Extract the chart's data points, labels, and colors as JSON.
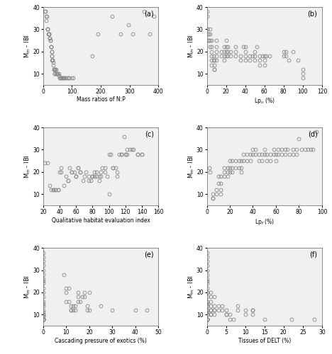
{
  "panel_a": {
    "label": "(a)",
    "xlabel": "Mass ratios of N:P",
    "ylabel": "M$_m$ - IBI",
    "xlim": [
      0,
      400
    ],
    "ylim": [
      5,
      40
    ],
    "xticks": [
      0,
      100,
      200,
      300,
      400
    ],
    "yticks": [
      10,
      20,
      30,
      40
    ],
    "x": [
      5,
      8,
      10,
      10,
      12,
      15,
      15,
      15,
      18,
      20,
      20,
      20,
      22,
      22,
      25,
      25,
      28,
      28,
      28,
      30,
      30,
      30,
      30,
      30,
      32,
      32,
      35,
      35,
      38,
      38,
      40,
      40,
      40,
      42,
      45,
      45,
      48,
      50,
      50,
      55,
      55,
      58,
      60,
      62,
      65,
      68,
      70,
      72,
      75,
      80,
      85,
      90,
      90,
      100,
      105,
      170,
      190,
      240,
      270,
      295,
      310,
      350,
      370,
      385
    ],
    "y": [
      38,
      38,
      36,
      34,
      36,
      30,
      30,
      30,
      28,
      28,
      28,
      28,
      26,
      26,
      25,
      25,
      22,
      22,
      22,
      20,
      20,
      18,
      18,
      16,
      16,
      16,
      15,
      14,
      12,
      12,
      12,
      10,
      10,
      12,
      12,
      10,
      10,
      10,
      10,
      10,
      9,
      8,
      8,
      8,
      8,
      8,
      8,
      8,
      8,
      8,
      8,
      8,
      8,
      8,
      8,
      18,
      28,
      36,
      28,
      32,
      28,
      38,
      28,
      36
    ]
  },
  "panel_b": {
    "label": "(b)",
    "xlabel": "Lp$_u$ (%)",
    "ylabel": "M$_m$ - IBI",
    "xlim": [
      0,
      120
    ],
    "ylim": [
      5,
      40
    ],
    "xticks": [
      0,
      20,
      40,
      60,
      80,
      100,
      120
    ],
    "yticks": [
      10,
      20,
      30,
      40
    ],
    "x": [
      0,
      0,
      0,
      0,
      0,
      2,
      2,
      2,
      3,
      3,
      3,
      3,
      5,
      5,
      5,
      5,
      5,
      5,
      7,
      7,
      8,
      8,
      8,
      8,
      10,
      10,
      10,
      10,
      10,
      15,
      15,
      18,
      18,
      18,
      18,
      20,
      20,
      20,
      20,
      22,
      22,
      22,
      25,
      25,
      30,
      30,
      30,
      35,
      35,
      38,
      40,
      40,
      40,
      40,
      45,
      45,
      48,
      50,
      50,
      50,
      52,
      55,
      55,
      55,
      58,
      60,
      60,
      60,
      62,
      65,
      80,
      80,
      82,
      82,
      85,
      90,
      95,
      100,
      100,
      100
    ],
    "y": [
      38,
      36,
      30,
      30,
      28,
      28,
      25,
      25,
      30,
      28,
      25,
      22,
      25,
      22,
      20,
      18,
      16,
      14,
      18,
      16,
      16,
      14,
      12,
      12,
      25,
      22,
      20,
      18,
      16,
      20,
      18,
      22,
      20,
      18,
      16,
      25,
      22,
      20,
      18,
      22,
      20,
      18,
      20,
      18,
      22,
      20,
      18,
      18,
      16,
      22,
      22,
      20,
      18,
      16,
      18,
      16,
      18,
      20,
      18,
      16,
      22,
      18,
      16,
      14,
      18,
      18,
      16,
      14,
      18,
      18,
      20,
      18,
      20,
      18,
      16,
      20,
      16,
      12,
      10,
      8
    ]
  },
  "panel_c": {
    "label": "(c)",
    "xlabel": "Qualitative habitat evaluation index",
    "ylabel": "M$_m$ - IBI",
    "xlim": [
      20,
      160
    ],
    "ylim": [
      5,
      40
    ],
    "xticks": [
      20,
      40,
      60,
      80,
      100,
      120,
      140,
      160
    ],
    "yticks": [
      10,
      20,
      30,
      40
    ],
    "x": [
      22,
      25,
      28,
      30,
      32,
      32,
      35,
      35,
      38,
      38,
      40,
      42,
      42,
      45,
      48,
      50,
      50,
      52,
      55,
      55,
      58,
      60,
      60,
      62,
      62,
      65,
      65,
      68,
      70,
      72,
      75,
      75,
      78,
      80,
      80,
      82,
      82,
      85,
      85,
      88,
      88,
      90,
      90,
      92,
      95,
      95,
      98,
      100,
      100,
      102,
      105,
      105,
      108,
      110,
      110,
      112,
      115,
      115,
      118,
      120,
      120,
      122,
      122,
      125,
      128,
      130,
      135,
      135,
      140,
      140
    ],
    "y": [
      24,
      24,
      14,
      12,
      12,
      12,
      12,
      12,
      12,
      12,
      20,
      22,
      20,
      14,
      18,
      16,
      16,
      22,
      20,
      20,
      20,
      18,
      18,
      22,
      22,
      20,
      20,
      16,
      18,
      20,
      18,
      16,
      16,
      18,
      18,
      20,
      18,
      20,
      18,
      18,
      16,
      20,
      18,
      22,
      22,
      20,
      18,
      10,
      28,
      28,
      22,
      22,
      22,
      20,
      18,
      28,
      28,
      28,
      36,
      28,
      28,
      30,
      28,
      30,
      30,
      30,
      28,
      28,
      28,
      28
    ]
  },
  "panel_d": {
    "label": "(d)",
    "xlabel": "Lp$_f$ (%)",
    "ylabel": "M$_m$ - IBI",
    "xlim": [
      0,
      100
    ],
    "ylim": [
      5,
      40
    ],
    "xticks": [
      0,
      20,
      40,
      60,
      80,
      100
    ],
    "yticks": [
      10,
      20,
      30,
      40
    ],
    "x": [
      2,
      3,
      5,
      5,
      5,
      8,
      8,
      10,
      10,
      12,
      12,
      12,
      12,
      15,
      15,
      15,
      18,
      18,
      18,
      20,
      20,
      20,
      22,
      22,
      22,
      25,
      25,
      28,
      28,
      30,
      30,
      30,
      32,
      32,
      35,
      35,
      38,
      38,
      40,
      40,
      42,
      42,
      45,
      45,
      48,
      48,
      50,
      50,
      52,
      52,
      55,
      55,
      58,
      58,
      60,
      60,
      62,
      62,
      65,
      65,
      68,
      68,
      70,
      72,
      75,
      75,
      78,
      78,
      80,
      82,
      85,
      88,
      90,
      92,
      95
    ],
    "y": [
      22,
      20,
      10,
      8,
      8,
      12,
      10,
      18,
      15,
      18,
      15,
      12,
      10,
      22,
      20,
      18,
      22,
      20,
      18,
      25,
      22,
      20,
      25,
      22,
      20,
      25,
      22,
      25,
      22,
      25,
      22,
      20,
      28,
      25,
      28,
      25,
      28,
      25,
      30,
      28,
      30,
      28,
      28,
      25,
      28,
      25,
      30,
      28,
      28,
      25,
      28,
      25,
      30,
      28,
      28,
      25,
      30,
      28,
      30,
      28,
      30,
      28,
      30,
      28,
      30,
      28,
      30,
      28,
      35,
      30,
      30,
      30,
      30,
      30,
      38
    ]
  },
  "panel_e": {
    "label": "(e)",
    "xlabel": "Cascading pressure of exotics (%)",
    "ylabel": "M$_m$ - IBI",
    "xlim": [
      0,
      50
    ],
    "ylim": [
      5,
      40
    ],
    "xticks": [
      0,
      10,
      20,
      30,
      40,
      50
    ],
    "yticks": [
      10,
      20,
      30,
      40
    ],
    "x": [
      0,
      0,
      0,
      0,
      0,
      0,
      0,
      0,
      0,
      0,
      0,
      0,
      0,
      0,
      0,
      0,
      0,
      0,
      0,
      0,
      0,
      0,
      0,
      0,
      0,
      0,
      0,
      0,
      9,
      10,
      10,
      10,
      11,
      11,
      12,
      12,
      12,
      13,
      13,
      14,
      14,
      15,
      15,
      15,
      16,
      17,
      18,
      18,
      19,
      19,
      20,
      20,
      25,
      30,
      40,
      45
    ],
    "y": [
      38,
      36,
      34,
      32,
      30,
      28,
      26,
      25,
      24,
      22,
      20,
      18,
      16,
      15,
      14,
      12,
      11,
      10,
      10,
      9,
      9,
      8,
      8,
      8,
      8,
      8,
      8,
      8,
      28,
      22,
      20,
      16,
      22,
      16,
      14,
      12,
      12,
      14,
      12,
      14,
      12,
      20,
      18,
      16,
      16,
      18,
      20,
      18,
      14,
      12,
      20,
      12,
      14,
      12,
      12,
      12
    ]
  },
  "panel_f": {
    "label": "(f)",
    "xlabel": "Tissues of DELT (%)",
    "ylabel": "M$_m$ - IBI",
    "xlim": [
      0,
      30
    ],
    "ylim": [
      5,
      40
    ],
    "xticks": [
      0,
      5,
      10,
      15,
      20,
      25,
      30
    ],
    "yticks": [
      10,
      20,
      30,
      40
    ],
    "x": [
      0,
      0,
      0,
      0,
      0,
      0,
      0,
      0,
      0,
      0,
      0,
      0,
      0,
      0,
      0,
      0,
      0,
      0,
      0,
      0,
      0,
      0,
      0,
      0,
      0,
      0,
      0,
      0,
      0,
      1,
      1,
      1,
      1,
      1,
      1,
      1,
      1,
      2,
      2,
      2,
      2,
      2,
      3,
      3,
      4,
      4,
      5,
      5,
      5,
      6,
      6,
      7,
      8,
      8,
      10,
      10,
      12,
      12,
      12,
      15,
      22,
      28
    ],
    "y": [
      38,
      36,
      34,
      32,
      30,
      28,
      26,
      25,
      24,
      22,
      20,
      20,
      18,
      16,
      16,
      15,
      14,
      14,
      12,
      12,
      11,
      10,
      10,
      8,
      8,
      8,
      8,
      8,
      8,
      20,
      18,
      16,
      14,
      12,
      12,
      10,
      10,
      18,
      14,
      12,
      12,
      10,
      14,
      12,
      14,
      12,
      12,
      10,
      10,
      10,
      8,
      8,
      14,
      12,
      12,
      10,
      12,
      12,
      10,
      8,
      8,
      8
    ]
  },
  "marker": "o",
  "markersize": 3.5,
  "markerfacecolor": "none",
  "markeredgecolor": "#888888",
  "markeredgewidth": 0.6,
  "bg_color": "#ffffff",
  "plot_bg_color": "#f0f0f0"
}
